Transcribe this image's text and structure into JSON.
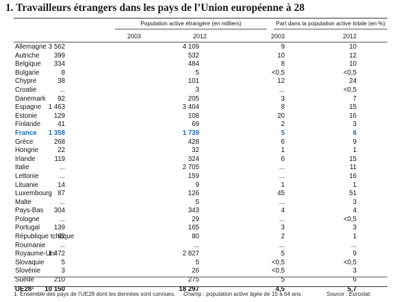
{
  "title": "1. Travailleurs étrangers dans les pays de l’Union européenne à 28",
  "header": {
    "group1": "Population active étrangère (en milliers)",
    "group2": "Part dans la population active totale (en %)",
    "years": [
      "2003",
      "2012",
      "2003",
      "2012"
    ]
  },
  "rows": [
    {
      "name": "Allemagne",
      "a": "3 562",
      "b": "4 109",
      "c": "9",
      "d": "10"
    },
    {
      "name": "Autriche",
      "a": "399",
      "b": "532",
      "c": "10",
      "d": "12"
    },
    {
      "name": "Belgique",
      "a": "334",
      "b": "484",
      "c": "8",
      "d": "10"
    },
    {
      "name": "Bulgarie",
      "a": "8",
      "b": "5",
      "c": "<0,5",
      "d": "<0,5"
    },
    {
      "name": "Chypre",
      "a": "38",
      "b": "101",
      "c": "12",
      "d": "24"
    },
    {
      "name": "Croatie",
      "a": "...",
      "b": "3",
      "c": "...",
      "d": "<0,5"
    },
    {
      "name": "Danemark",
      "a": "92",
      "b": "205",
      "c": "3",
      "d": "7"
    },
    {
      "name": "Espagne",
      "a": "1 463",
      "b": "3 404",
      "c": "8",
      "d": "15"
    },
    {
      "name": "Estonie",
      "a": "129",
      "b": "108",
      "c": "20",
      "d": "16"
    },
    {
      "name": "Finlande",
      "a": "41",
      "b": "69",
      "c": "2",
      "d": "3"
    },
    {
      "name": "France",
      "a": "1 358",
      "b": "1 739",
      "c": "5",
      "d": "6"
    },
    {
      "name": "Grèce",
      "a": "268",
      "b": "428",
      "c": "6",
      "d": "9"
    },
    {
      "name": "Hongrie",
      "a": "22",
      "b": "32",
      "c": "1",
      "d": "1"
    },
    {
      "name": "Irlande",
      "a": "119",
      "b": "324",
      "c": "6",
      "d": "15"
    },
    {
      "name": "Italie",
      "a": "...",
      "b": "2 705",
      "c": "...",
      "d": "11"
    },
    {
      "name": "Lettonie",
      "a": "...",
      "b": "159",
      "c": "...",
      "d": "16"
    },
    {
      "name": "Lituanie",
      "a": "14",
      "b": "9",
      "c": "1",
      "d": "1"
    },
    {
      "name": "Luxembourg",
      "a": "87",
      "b": "126",
      "c": "45",
      "d": "51"
    },
    {
      "name": "Malte",
      "a": "...",
      "b": "5",
      "c": "...",
      "d": "3"
    },
    {
      "name": "Pays-Bas",
      "a": "304",
      "b": "343",
      "c": "4",
      "d": "4"
    },
    {
      "name": "Pologne",
      "a": "...",
      "b": "29",
      "c": "...",
      "d": "<0,5"
    },
    {
      "name": "Portugal",
      "a": "139",
      "b": "165",
      "c": "3",
      "d": "3"
    },
    {
      "name": "République tchèque",
      "a": "82",
      "b": "80",
      "c": "2",
      "d": "1"
    },
    {
      "name": "Roumanie",
      "a": "...",
      "b": "...",
      "c": "...",
      "d": "..."
    },
    {
      "name": "Royaume-Uni",
      "a": "1 472",
      "b": "2 827",
      "c": "5",
      "d": "9"
    },
    {
      "name": "Slovaquie",
      "a": "5",
      "b": "5",
      "c": "<0,5",
      "d": "<0,5"
    },
    {
      "name": "Slovénie",
      "a": "3",
      "b": "26",
      "c": "<0,5",
      "d": "3"
    },
    {
      "name": "Suède",
      "a": "210",
      "b": "275",
      "c": "5",
      "d": "6"
    },
    {
      "name": "UE28¹",
      "a": "10 150",
      "b": "18 297",
      "c": "4,5",
      "d": "5,7"
    }
  ],
  "footnotes": {
    "note1": "1. Ensemble des pays de l’UE28 dont les données sont connues.",
    "champ": "Champ : population active âgée de 15 à 64 ans.",
    "source": "Source : Eurostat."
  }
}
